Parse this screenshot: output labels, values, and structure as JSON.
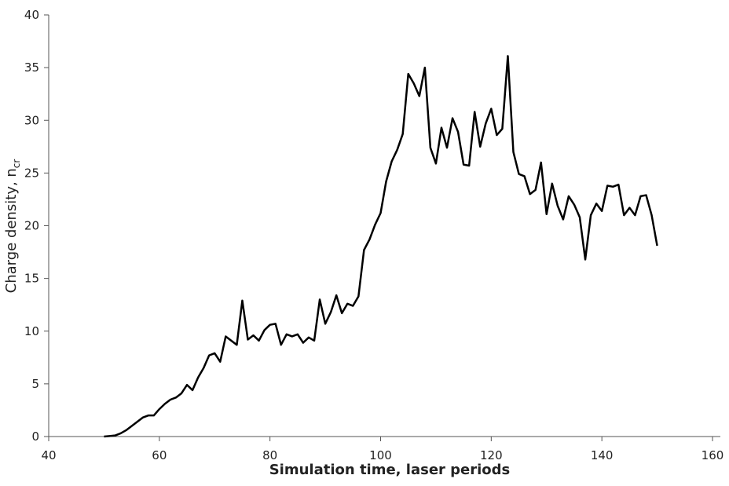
{
  "chart_data": {
    "type": "line",
    "xlabel": "Simulation time, laser periods",
    "ylabel": {
      "text": "Charge density, n",
      "subscript": "cr"
    },
    "xlim": [
      40,
      160
    ],
    "xticks": [
      40,
      60,
      80,
      100,
      120,
      140,
      160
    ],
    "ylim": [
      0,
      40
    ],
    "yticks": [
      0,
      5,
      10,
      15,
      20,
      25,
      30,
      35,
      40
    ],
    "grid": false,
    "series": [
      {
        "color": "#000000",
        "x": [
          50,
          51,
          52,
          53,
          54,
          55,
          56,
          57,
          58,
          59,
          60,
          61,
          62,
          63,
          64,
          65,
          66,
          67,
          68,
          69,
          70,
          71,
          72,
          73,
          74,
          75,
          76,
          77,
          78,
          79,
          80,
          81,
          82,
          83,
          84,
          85,
          86,
          87,
          88,
          89,
          90,
          91,
          92,
          93,
          94,
          95,
          96,
          97,
          98,
          99,
          100,
          101,
          102,
          103,
          104,
          105,
          106,
          107,
          108,
          109,
          110,
          111,
          112,
          113,
          114,
          115,
          116,
          117,
          118,
          119,
          120,
          121,
          122,
          123,
          124,
          125,
          126,
          127,
          128,
          129,
          130,
          131,
          132,
          133,
          134,
          135,
          136,
          137,
          138,
          139,
          140,
          141,
          142,
          143,
          144,
          145,
          146,
          147,
          148,
          149,
          150
        ],
        "values": [
          0,
          0.05,
          0.1,
          0.3,
          0.6,
          1.0,
          1.4,
          1.8,
          2.0,
          2.0,
          2.6,
          3.1,
          3.5,
          3.7,
          4.1,
          4.9,
          4.4,
          5.6,
          6.5,
          7.7,
          7.9,
          7.1,
          9.5,
          9.1,
          8.7,
          12.9,
          9.2,
          9.6,
          9.1,
          10.1,
          10.6,
          10.7,
          8.7,
          9.7,
          9.5,
          9.7,
          8.9,
          9.4,
          9.1,
          13.0,
          10.7,
          11.8,
          13.4,
          11.7,
          12.6,
          12.4,
          13.3,
          17.7,
          18.7,
          20.1,
          21.2,
          24.2,
          26.1,
          27.2,
          28.7,
          34.4,
          33.5,
          32.3,
          35.0,
          27.4,
          25.9,
          29.3,
          27.4,
          30.2,
          28.9,
          25.8,
          25.7,
          30.8,
          27.5,
          29.7,
          31.1,
          28.6,
          29.2,
          36.1,
          27.0,
          24.9,
          24.7,
          23.0,
          23.4,
          26.0,
          21.1,
          24.0,
          21.9,
          20.6,
          22.8,
          22.0,
          20.8,
          16.8,
          21.0,
          22.1,
          21.4,
          23.8,
          23.7,
          23.9,
          21.0,
          21.7,
          21.0,
          22.8,
          22.9,
          21.0,
          18.1
        ]
      }
    ]
  }
}
